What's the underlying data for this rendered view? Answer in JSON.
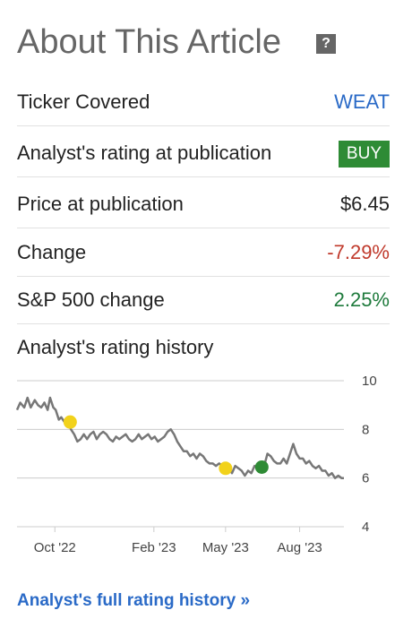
{
  "header": {
    "title": "About This Article",
    "help_icon": "?"
  },
  "rows": [
    {
      "label": "Ticker Covered",
      "value": "WEAT"
    },
    {
      "label": "Analyst's rating at publication",
      "value": "BUY"
    },
    {
      "label": "Price at publication",
      "value": "$6.45"
    },
    {
      "label": "Change",
      "value": "-7.29%"
    },
    {
      "label": "S&P 500 change",
      "value": "2.25%"
    }
  ],
  "colors": {
    "link": "#2a6ac7",
    "buy_badge": "#2e8b35",
    "negative": "#c0392b",
    "positive": "#1e7a3c",
    "price_line": "#777777",
    "rating_hold": "#f2d21b",
    "rating_buy": "#2e8b35"
  },
  "history": {
    "label": "Analyst's rating history",
    "link": "Analyst's full rating history »"
  },
  "chart_data": {
    "type": "line",
    "ylim": [
      4,
      10
    ],
    "yticks": [
      "4",
      "6",
      "8",
      "10"
    ],
    "xticks": [
      {
        "label": "Oct '22",
        "x": "2022-10-01"
      },
      {
        "label": "Feb '23",
        "x": "2023-02-01"
      },
      {
        "label": "May '23",
        "x": "2023-05-01"
      },
      {
        "label": "Aug '23",
        "x": "2023-08-01"
      }
    ],
    "xrange": [
      "2022-08-15",
      "2023-09-25"
    ],
    "grid": true,
    "series": [
      {
        "points": [
          [
            "2022-08-15",
            8.8
          ],
          [
            "2022-08-19",
            9.1
          ],
          [
            "2022-08-24",
            8.9
          ],
          [
            "2022-08-28",
            9.3
          ],
          [
            "2022-09-01",
            8.9
          ],
          [
            "2022-09-06",
            9.2
          ],
          [
            "2022-09-10",
            9.0
          ],
          [
            "2022-09-14",
            8.9
          ],
          [
            "2022-09-18",
            9.1
          ],
          [
            "2022-09-22",
            8.8
          ],
          [
            "2022-09-25",
            9.3
          ],
          [
            "2022-09-29",
            8.9
          ],
          [
            "2022-10-02",
            8.8
          ],
          [
            "2022-10-06",
            8.4
          ],
          [
            "2022-10-09",
            8.5
          ],
          [
            "2022-10-13",
            8.3
          ],
          [
            "2022-10-17",
            8.3
          ],
          [
            "2022-10-21",
            8.0
          ],
          [
            "2022-10-25",
            7.8
          ],
          [
            "2022-10-29",
            7.5
          ],
          [
            "2022-11-02",
            7.6
          ],
          [
            "2022-11-06",
            7.8
          ],
          [
            "2022-11-10",
            7.6
          ],
          [
            "2022-11-14",
            7.8
          ],
          [
            "2022-11-18",
            7.9
          ],
          [
            "2022-11-22",
            7.6
          ],
          [
            "2022-11-26",
            7.8
          ],
          [
            "2022-11-30",
            7.9
          ],
          [
            "2022-12-04",
            7.8
          ],
          [
            "2022-12-08",
            7.6
          ],
          [
            "2022-12-12",
            7.5
          ],
          [
            "2022-12-16",
            7.7
          ],
          [
            "2022-12-20",
            7.6
          ],
          [
            "2022-12-24",
            7.7
          ],
          [
            "2022-12-28",
            7.8
          ],
          [
            "2023-01-01",
            7.6
          ],
          [
            "2023-01-05",
            7.5
          ],
          [
            "2023-01-09",
            7.6
          ],
          [
            "2023-01-13",
            7.8
          ],
          [
            "2023-01-17",
            7.6
          ],
          [
            "2023-01-21",
            7.7
          ],
          [
            "2023-01-25",
            7.8
          ],
          [
            "2023-01-29",
            7.6
          ],
          [
            "2023-02-02",
            7.7
          ],
          [
            "2023-02-06",
            7.5
          ],
          [
            "2023-02-10",
            7.6
          ],
          [
            "2023-02-14",
            7.7
          ],
          [
            "2023-02-18",
            7.9
          ],
          [
            "2023-02-22",
            8.0
          ],
          [
            "2023-02-26",
            7.8
          ],
          [
            "2023-03-02",
            7.5
          ],
          [
            "2023-03-06",
            7.3
          ],
          [
            "2023-03-10",
            7.1
          ],
          [
            "2023-03-14",
            7.1
          ],
          [
            "2023-03-18",
            6.9
          ],
          [
            "2023-03-22",
            7.0
          ],
          [
            "2023-03-26",
            6.8
          ],
          [
            "2023-03-30",
            7.0
          ],
          [
            "2023-04-03",
            6.9
          ],
          [
            "2023-04-07",
            6.7
          ],
          [
            "2023-04-11",
            6.6
          ],
          [
            "2023-04-15",
            6.6
          ],
          [
            "2023-04-19",
            6.5
          ],
          [
            "2023-04-23",
            6.6
          ],
          [
            "2023-04-27",
            6.5
          ],
          [
            "2023-05-01",
            6.4
          ],
          [
            "2023-05-05",
            6.4
          ],
          [
            "2023-05-09",
            6.2
          ],
          [
            "2023-05-13",
            6.5
          ],
          [
            "2023-05-17",
            6.4
          ],
          [
            "2023-05-21",
            6.3
          ],
          [
            "2023-05-25",
            6.1
          ],
          [
            "2023-05-29",
            6.3
          ],
          [
            "2023-06-02",
            6.2
          ],
          [
            "2023-06-06",
            6.5
          ],
          [
            "2023-06-10",
            6.4
          ],
          [
            "2023-06-14",
            6.5
          ],
          [
            "2023-06-18",
            6.5
          ],
          [
            "2023-06-22",
            7.0
          ],
          [
            "2023-06-26",
            6.9
          ],
          [
            "2023-06-30",
            6.7
          ],
          [
            "2023-07-04",
            6.6
          ],
          [
            "2023-07-08",
            6.6
          ],
          [
            "2023-07-12",
            6.8
          ],
          [
            "2023-07-16",
            6.6
          ],
          [
            "2023-07-20",
            7.0
          ],
          [
            "2023-07-24",
            7.4
          ],
          [
            "2023-07-28",
            7.0
          ],
          [
            "2023-08-01",
            6.8
          ],
          [
            "2023-08-05",
            6.8
          ],
          [
            "2023-08-09",
            6.6
          ],
          [
            "2023-08-13",
            6.7
          ],
          [
            "2023-08-17",
            6.5
          ],
          [
            "2023-08-21",
            6.4
          ],
          [
            "2023-08-25",
            6.5
          ],
          [
            "2023-08-29",
            6.3
          ],
          [
            "2023-09-02",
            6.3
          ],
          [
            "2023-09-06",
            6.1
          ],
          [
            "2023-09-10",
            6.2
          ],
          [
            "2023-09-14",
            6.0
          ],
          [
            "2023-09-18",
            6.1
          ],
          [
            "2023-09-22",
            6.0
          ],
          [
            "2023-09-25",
            6.0
          ]
        ]
      }
    ],
    "markers": [
      {
        "date": "2022-10-20",
        "value": 8.3,
        "rating": "hold"
      },
      {
        "date": "2023-05-01",
        "value": 6.4,
        "rating": "hold"
      },
      {
        "date": "2023-06-15",
        "value": 6.45,
        "rating": "buy"
      }
    ]
  }
}
